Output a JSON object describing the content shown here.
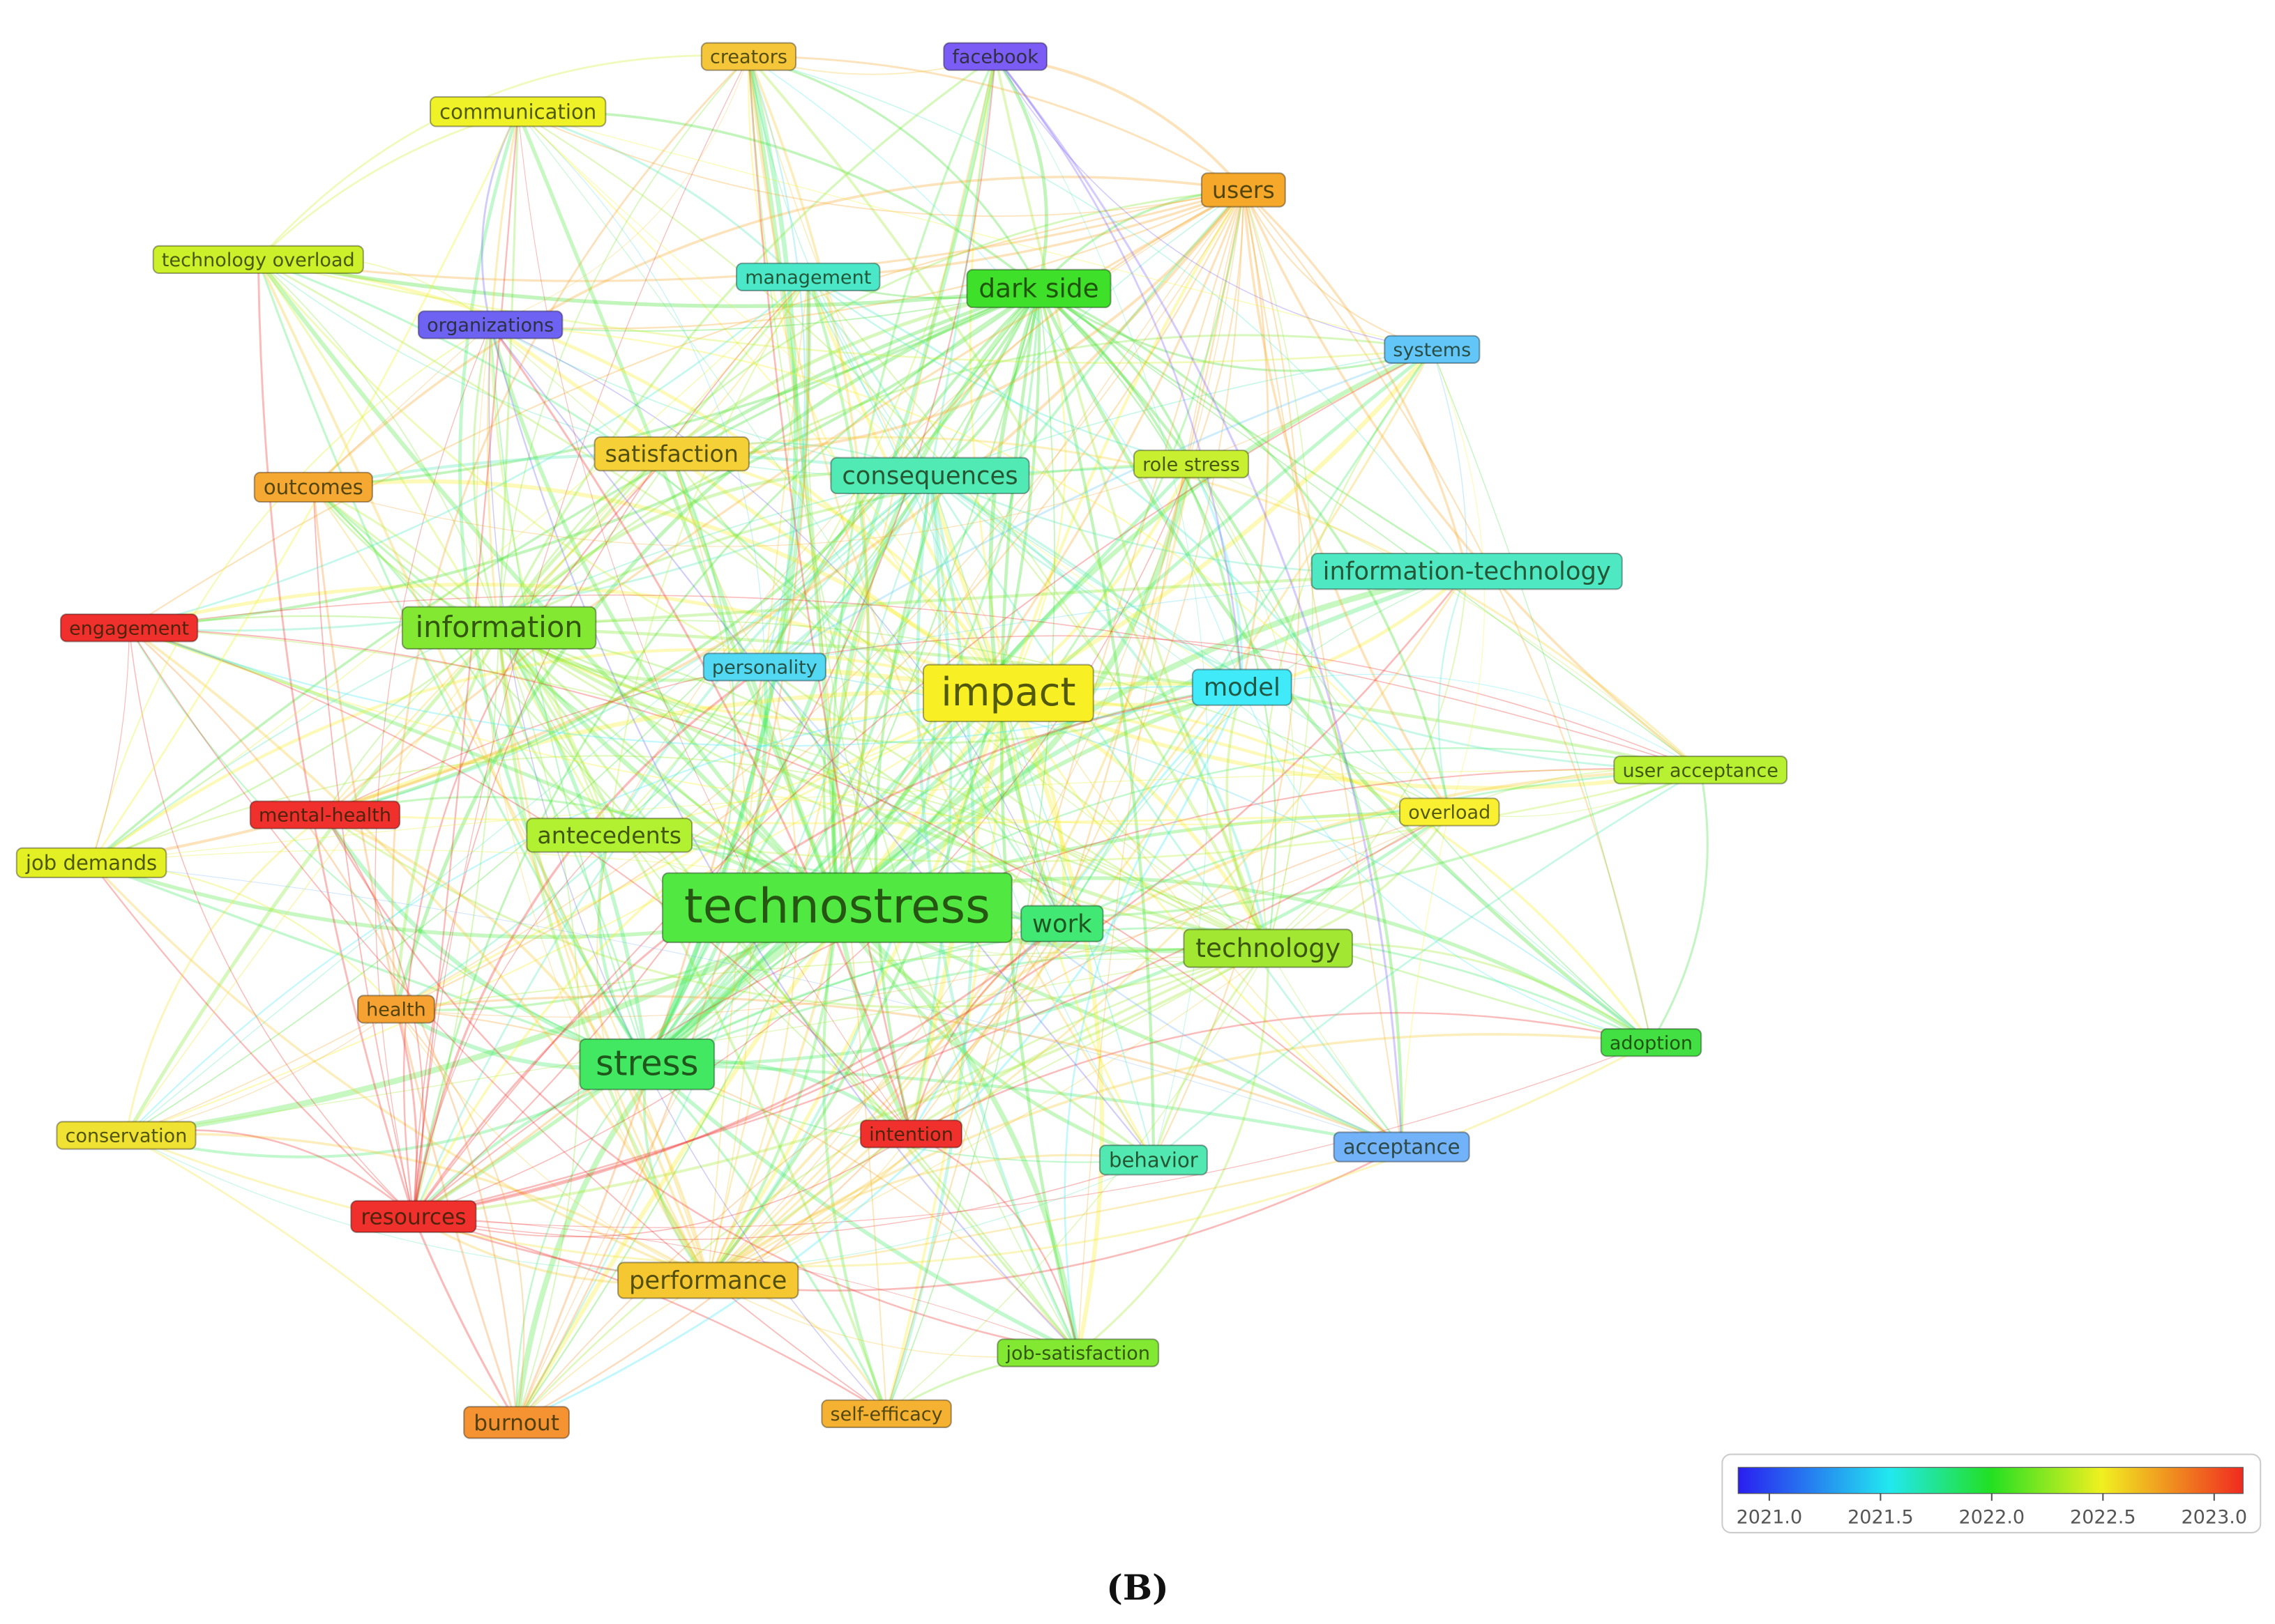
{
  "nodes": [
    {
      "label": "creators",
      "color": "#f5c63a"
    },
    {
      "label": "facebook",
      "color": "#7b5cf5"
    },
    {
      "label": "communication",
      "color": "#eef226"
    },
    {
      "label": "users",
      "color": "#f5a82a"
    },
    {
      "label": "technology overload",
      "color": "#ccf02a"
    },
    {
      "label": "management",
      "color": "#4ae8c8"
    },
    {
      "label": "dark side",
      "color": "#3ee02a"
    },
    {
      "label": "organizations",
      "color": "#6e62f2"
    },
    {
      "label": "systems",
      "color": "#62c6f8"
    },
    {
      "label": "satisfaction",
      "color": "#f5d036"
    },
    {
      "label": "consequences",
      "color": "#52eab4"
    },
    {
      "label": "role stress",
      "color": "#c8f030"
    },
    {
      "label": "outcomes",
      "color": "#f5a832"
    },
    {
      "label": "information-technology",
      "color": "#4ee8c2"
    },
    {
      "label": "engagement",
      "color": "#f0302c"
    },
    {
      "label": "information",
      "color": "#82e832"
    },
    {
      "label": "personality",
      "color": "#52d8f2"
    },
    {
      "label": "impact",
      "color": "#f8f024"
    },
    {
      "label": "model",
      "color": "#40eaf8"
    },
    {
      "label": "user acceptance",
      "color": "#b8f032"
    },
    {
      "label": "overload",
      "color": "#f8f030"
    },
    {
      "label": "mental-health",
      "color": "#f0302c"
    },
    {
      "label": "antecedents",
      "color": "#b2f032"
    },
    {
      "label": "job demands",
      "color": "#e2f024"
    },
    {
      "label": "technostress",
      "color": "#52e842"
    },
    {
      "label": "work",
      "color": "#42e874"
    },
    {
      "label": "technology",
      "color": "#a2e832"
    },
    {
      "label": "health",
      "color": "#f5a232"
    },
    {
      "label": "adoption",
      "color": "#42e042"
    },
    {
      "label": "stress",
      "color": "#42e862"
    },
    {
      "label": "intention",
      "color": "#f0302c"
    },
    {
      "label": "conservation",
      "color": "#f0e232"
    },
    {
      "label": "acceptance",
      "color": "#72b2f8"
    },
    {
      "label": "behavior",
      "color": "#52e8b2"
    },
    {
      "label": "resources",
      "color": "#f0302c"
    },
    {
      "label": "performance",
      "color": "#f5c832"
    },
    {
      "label": "job-satisfaction",
      "color": "#82e832"
    },
    {
      "label": "self-efficacy",
      "color": "#f5b232"
    },
    {
      "label": "burnout",
      "color": "#f59232"
    }
  ],
  "legend": {
    "lim": [
      2020.86,
      2023.13
    ],
    "ticks": [
      {
        "value": 2021,
        "label": "2021.0"
      },
      {
        "value": 2021.5,
        "label": "2021.5"
      },
      {
        "value": 2022,
        "label": "2022.0"
      },
      {
        "value": 2022.5,
        "label": "2022.5"
      },
      {
        "value": 2023,
        "label": "2023.0"
      }
    ]
  },
  "caption": "(B)"
}
